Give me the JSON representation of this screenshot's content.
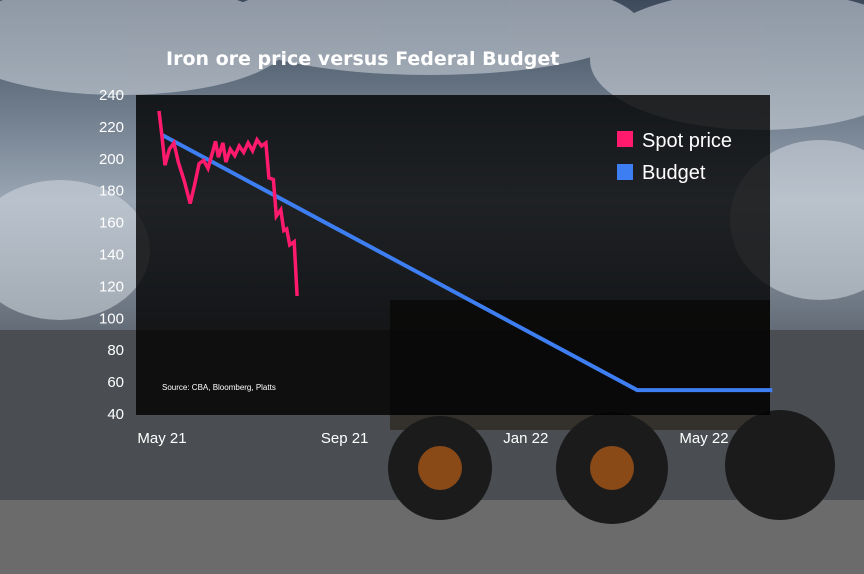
{
  "chart_data": {
    "type": "line",
    "title": "Iron ore price versus Federal Budget",
    "source": "Source: CBA, Bloomberg, Platts",
    "xlabel": "",
    "ylabel": "",
    "x_ticks": [
      {
        "label": "May 21",
        "date": "2021-05-15"
      },
      {
        "label": "Sep 21",
        "date": "2021-09-15"
      },
      {
        "label": "Jan 22",
        "date": "2022-01-15"
      },
      {
        "label": "May 22",
        "date": "2022-05-15"
      }
    ],
    "y_ticks": [
      40,
      60,
      80,
      100,
      120,
      140,
      160,
      180,
      200,
      220,
      240
    ],
    "ylim": [
      40,
      240
    ],
    "grid": false,
    "legend_position": "top-right",
    "series": [
      {
        "name": "Spot price",
        "color": "#ff1a6e",
        "points": [
          [
            "2021-05-13",
            230
          ],
          [
            "2021-05-15",
            214
          ],
          [
            "2021-05-17",
            196
          ],
          [
            "2021-05-20",
            206
          ],
          [
            "2021-05-23",
            210
          ],
          [
            "2021-05-26",
            198
          ],
          [
            "2021-05-30",
            186
          ],
          [
            "2021-06-03",
            172
          ],
          [
            "2021-06-06",
            184
          ],
          [
            "2021-06-09",
            197
          ],
          [
            "2021-06-12",
            199
          ],
          [
            "2021-06-15",
            194
          ],
          [
            "2021-06-18",
            204
          ],
          [
            "2021-06-20",
            211
          ],
          [
            "2021-06-22",
            201
          ],
          [
            "2021-06-25",
            210
          ],
          [
            "2021-06-27",
            198
          ],
          [
            "2021-06-30",
            206
          ],
          [
            "2021-07-03",
            202
          ],
          [
            "2021-07-06",
            208
          ],
          [
            "2021-07-09",
            204
          ],
          [
            "2021-07-12",
            210
          ],
          [
            "2021-07-15",
            205
          ],
          [
            "2021-07-18",
            212
          ],
          [
            "2021-07-21",
            208
          ],
          [
            "2021-07-24",
            210
          ],
          [
            "2021-07-26",
            188
          ],
          [
            "2021-07-29",
            187
          ],
          [
            "2021-07-31",
            164
          ],
          [
            "2021-08-03",
            168
          ],
          [
            "2021-08-05",
            155
          ],
          [
            "2021-08-07",
            156
          ],
          [
            "2021-08-09",
            146
          ],
          [
            "2021-08-12",
            148
          ],
          [
            "2021-08-14",
            114
          ]
        ]
      },
      {
        "name": "Budget",
        "color": "#3d7ff2",
        "points": [
          [
            "2021-05-15",
            215
          ],
          [
            "2022-03-31",
            55
          ],
          [
            "2022-06-30",
            55
          ]
        ]
      }
    ]
  }
}
